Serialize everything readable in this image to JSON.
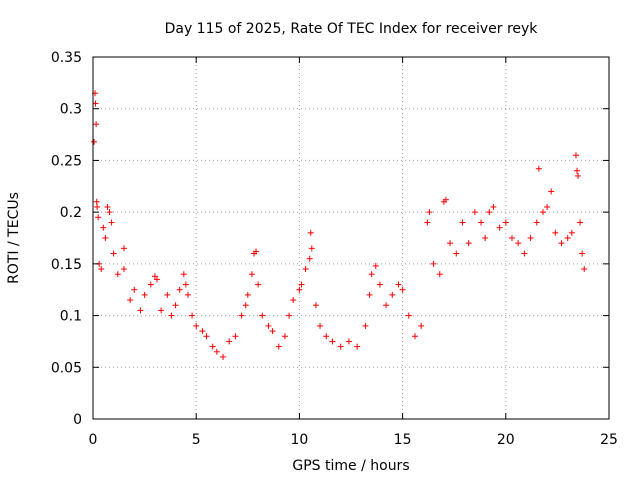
{
  "chart_data": {
    "type": "scatter",
    "title": "Day 115 of 2025, Rate Of TEC Index for receiver reyk",
    "xlabel": "GPS time / hours",
    "ylabel": "ROTI / TECUs",
    "xlim": [
      0,
      25
    ],
    "ylim": [
      0,
      0.35
    ],
    "xticks": [
      "0",
      "5",
      "10",
      "15",
      "20",
      "25"
    ],
    "yticks": [
      "0",
      "0.05",
      "0.1",
      "0.15",
      "0.2",
      "0.25",
      "0.3",
      "0.35"
    ],
    "grid": true,
    "marker": "+",
    "color": "#ff0000",
    "series": [
      {
        "values": [
          [
            0.05,
            0.268
          ],
          [
            0.1,
            0.315
          ],
          [
            0.12,
            0.305
          ],
          [
            0.15,
            0.285
          ],
          [
            0.18,
            0.21
          ],
          [
            0.2,
            0.205
          ],
          [
            0.25,
            0.195
          ],
          [
            0.3,
            0.15
          ],
          [
            0.4,
            0.145
          ],
          [
            0.5,
            0.185
          ],
          [
            0.6,
            0.175
          ],
          [
            0.7,
            0.205
          ],
          [
            0.8,
            0.2
          ],
          [
            0.9,
            0.19
          ],
          [
            1.0,
            0.16
          ],
          [
            1.2,
            0.14
          ],
          [
            1.5,
            0.165
          ],
          [
            1.5,
            0.145
          ],
          [
            1.8,
            0.115
          ],
          [
            2.0,
            0.125
          ],
          [
            2.3,
            0.105
          ],
          [
            2.5,
            0.12
          ],
          [
            2.8,
            0.13
          ],
          [
            3.0,
            0.138
          ],
          [
            3.1,
            0.135
          ],
          [
            3.3,
            0.105
          ],
          [
            3.6,
            0.12
          ],
          [
            3.8,
            0.1
          ],
          [
            4.0,
            0.11
          ],
          [
            4.2,
            0.125
          ],
          [
            4.4,
            0.14
          ],
          [
            4.5,
            0.13
          ],
          [
            4.6,
            0.12
          ],
          [
            4.8,
            0.1
          ],
          [
            5.0,
            0.09
          ],
          [
            5.3,
            0.085
          ],
          [
            5.5,
            0.08
          ],
          [
            5.8,
            0.07
          ],
          [
            6.0,
            0.065
          ],
          [
            6.3,
            0.06
          ],
          [
            6.6,
            0.075
          ],
          [
            6.9,
            0.08
          ],
          [
            7.2,
            0.1
          ],
          [
            7.4,
            0.11
          ],
          [
            7.5,
            0.12
          ],
          [
            7.7,
            0.14
          ],
          [
            7.8,
            0.16
          ],
          [
            7.9,
            0.162
          ],
          [
            8.0,
            0.13
          ],
          [
            8.2,
            0.1
          ],
          [
            8.5,
            0.09
          ],
          [
            8.7,
            0.085
          ],
          [
            9.0,
            0.07
          ],
          [
            9.3,
            0.08
          ],
          [
            9.5,
            0.1
          ],
          [
            9.7,
            0.115
          ],
          [
            10.0,
            0.125
          ],
          [
            10.1,
            0.13
          ],
          [
            10.3,
            0.145
          ],
          [
            10.5,
            0.155
          ],
          [
            10.55,
            0.18
          ],
          [
            10.6,
            0.165
          ],
          [
            10.8,
            0.11
          ],
          [
            11.0,
            0.09
          ],
          [
            11.3,
            0.08
          ],
          [
            11.6,
            0.075
          ],
          [
            12.0,
            0.07
          ],
          [
            12.4,
            0.075
          ],
          [
            12.8,
            0.07
          ],
          [
            13.2,
            0.09
          ],
          [
            13.4,
            0.12
          ],
          [
            13.5,
            0.14
          ],
          [
            13.7,
            0.148
          ],
          [
            13.9,
            0.13
          ],
          [
            14.2,
            0.11
          ],
          [
            14.5,
            0.12
          ],
          [
            14.8,
            0.13
          ],
          [
            15.0,
            0.125
          ],
          [
            15.3,
            0.1
          ],
          [
            15.6,
            0.08
          ],
          [
            15.9,
            0.09
          ],
          [
            16.2,
            0.19
          ],
          [
            16.3,
            0.2
          ],
          [
            16.5,
            0.15
          ],
          [
            16.8,
            0.14
          ],
          [
            17.0,
            0.21
          ],
          [
            17.1,
            0.212
          ],
          [
            17.3,
            0.17
          ],
          [
            17.6,
            0.16
          ],
          [
            17.9,
            0.19
          ],
          [
            18.2,
            0.17
          ],
          [
            18.5,
            0.2
          ],
          [
            18.8,
            0.19
          ],
          [
            19.0,
            0.175
          ],
          [
            19.2,
            0.2
          ],
          [
            19.4,
            0.205
          ],
          [
            19.7,
            0.185
          ],
          [
            20.0,
            0.19
          ],
          [
            20.3,
            0.175
          ],
          [
            20.6,
            0.17
          ],
          [
            20.9,
            0.16
          ],
          [
            21.2,
            0.175
          ],
          [
            21.5,
            0.19
          ],
          [
            21.6,
            0.242
          ],
          [
            21.8,
            0.2
          ],
          [
            22.0,
            0.205
          ],
          [
            22.2,
            0.22
          ],
          [
            22.4,
            0.18
          ],
          [
            22.7,
            0.17
          ],
          [
            23.0,
            0.175
          ],
          [
            23.2,
            0.18
          ],
          [
            23.4,
            0.255
          ],
          [
            23.45,
            0.24
          ],
          [
            23.5,
            0.235
          ],
          [
            23.6,
            0.19
          ],
          [
            23.7,
            0.16
          ],
          [
            23.8,
            0.145
          ]
        ]
      }
    ]
  }
}
